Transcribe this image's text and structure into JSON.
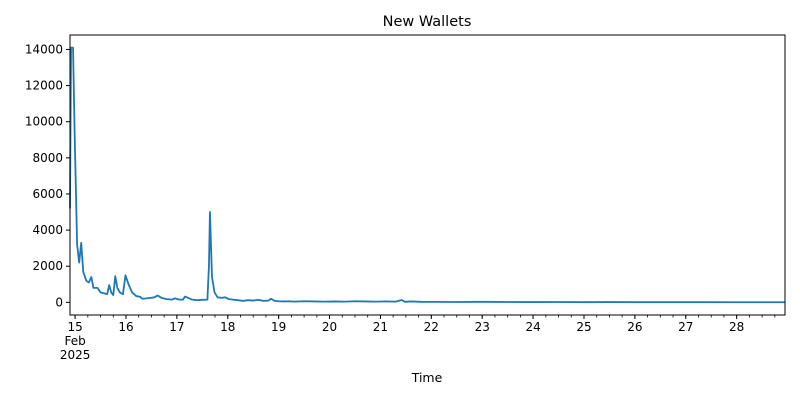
{
  "chart_data": {
    "type": "line",
    "title": "New Wallets",
    "xlabel": "Time",
    "ylabel": "",
    "x_unit": "day of Feb 2025",
    "xlim": [
      14.9,
      28.95
    ],
    "ylim": [
      -700,
      14800
    ],
    "grid": false,
    "line_color": "#1f77b4",
    "x_ticks": [
      {
        "value": 15,
        "label": "15",
        "sublabels": [
          "Feb",
          "2025"
        ]
      },
      {
        "value": 16,
        "label": "16"
      },
      {
        "value": 17,
        "label": "17"
      },
      {
        "value": 18,
        "label": "18"
      },
      {
        "value": 19,
        "label": "19"
      },
      {
        "value": 20,
        "label": "20"
      },
      {
        "value": 21,
        "label": "21"
      },
      {
        "value": 22,
        "label": "22"
      },
      {
        "value": 23,
        "label": "23"
      },
      {
        "value": 24,
        "label": "24"
      },
      {
        "value": 25,
        "label": "25"
      },
      {
        "value": 26,
        "label": "26"
      },
      {
        "value": 27,
        "label": "27"
      },
      {
        "value": 28,
        "label": "28"
      }
    ],
    "y_ticks": [
      {
        "value": 0,
        "label": "0"
      },
      {
        "value": 2000,
        "label": "2000"
      },
      {
        "value": 4000,
        "label": "4000"
      },
      {
        "value": 6000,
        "label": "6000"
      },
      {
        "value": 8000,
        "label": "8000"
      },
      {
        "value": 10000,
        "label": "10000"
      },
      {
        "value": 12000,
        "label": "12000"
      },
      {
        "value": 14000,
        "label": "14000"
      }
    ],
    "series": [
      {
        "points": [
          [
            14.9,
            5200
          ],
          [
            14.92,
            14100
          ],
          [
            14.96,
            14100
          ],
          [
            14.99,
            9500
          ],
          [
            15.04,
            3200
          ],
          [
            15.08,
            2200
          ],
          [
            15.12,
            3300
          ],
          [
            15.16,
            1700
          ],
          [
            15.22,
            1200
          ],
          [
            15.27,
            1100
          ],
          [
            15.32,
            1400
          ],
          [
            15.36,
            800
          ],
          [
            15.44,
            800
          ],
          [
            15.5,
            550
          ],
          [
            15.58,
            500
          ],
          [
            15.63,
            450
          ],
          [
            15.67,
            950
          ],
          [
            15.71,
            550
          ],
          [
            15.75,
            400
          ],
          [
            15.79,
            1450
          ],
          [
            15.83,
            800
          ],
          [
            15.88,
            550
          ],
          [
            15.94,
            450
          ],
          [
            15.99,
            1500
          ],
          [
            16.05,
            1000
          ],
          [
            16.12,
            550
          ],
          [
            16.2,
            350
          ],
          [
            16.28,
            300
          ],
          [
            16.32,
            200
          ],
          [
            16.4,
            220
          ],
          [
            16.48,
            250
          ],
          [
            16.56,
            280
          ],
          [
            16.62,
            380
          ],
          [
            16.7,
            250
          ],
          [
            16.8,
            180
          ],
          [
            16.9,
            150
          ],
          [
            16.96,
            220
          ],
          [
            17.05,
            150
          ],
          [
            17.12,
            150
          ],
          [
            17.16,
            320
          ],
          [
            17.22,
            250
          ],
          [
            17.3,
            150
          ],
          [
            17.4,
            120
          ],
          [
            17.5,
            140
          ],
          [
            17.6,
            150
          ],
          [
            17.63,
            2000
          ],
          [
            17.65,
            5000
          ],
          [
            17.69,
            1400
          ],
          [
            17.74,
            550
          ],
          [
            17.8,
            280
          ],
          [
            17.88,
            250
          ],
          [
            17.95,
            280
          ],
          [
            18.02,
            180
          ],
          [
            18.1,
            150
          ],
          [
            18.2,
            120
          ],
          [
            18.3,
            80
          ],
          [
            18.4,
            120
          ],
          [
            18.5,
            100
          ],
          [
            18.6,
            140
          ],
          [
            18.7,
            80
          ],
          [
            18.8,
            100
          ],
          [
            18.85,
            200
          ],
          [
            18.92,
            80
          ],
          [
            19.0,
            60
          ],
          [
            19.1,
            50
          ],
          [
            19.2,
            60
          ],
          [
            19.3,
            40
          ],
          [
            19.5,
            60
          ],
          [
            19.7,
            50
          ],
          [
            19.9,
            40
          ],
          [
            20.1,
            50
          ],
          [
            20.3,
            40
          ],
          [
            20.5,
            60
          ],
          [
            20.7,
            50
          ],
          [
            20.9,
            40
          ],
          [
            21.1,
            50
          ],
          [
            21.3,
            40
          ],
          [
            21.42,
            130
          ],
          [
            21.48,
            30
          ],
          [
            21.6,
            50
          ],
          [
            21.8,
            30
          ],
          [
            22.0,
            25
          ],
          [
            22.5,
            20
          ],
          [
            23.0,
            30
          ],
          [
            23.5,
            20
          ],
          [
            24.0,
            15
          ],
          [
            24.5,
            20
          ],
          [
            25.0,
            10
          ],
          [
            25.5,
            15
          ],
          [
            26.0,
            10
          ],
          [
            26.5,
            10
          ],
          [
            27.0,
            10
          ],
          [
            27.5,
            8
          ],
          [
            28.0,
            6
          ],
          [
            28.5,
            5
          ],
          [
            28.95,
            5
          ]
        ]
      }
    ]
  }
}
